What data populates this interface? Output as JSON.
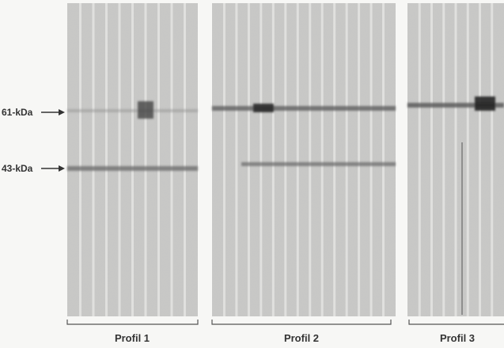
{
  "markers": [
    "61-kDa",
    "43-kDa"
  ],
  "profiles": [
    "Profil 1",
    "Profil 2",
    "Profil 3"
  ]
}
